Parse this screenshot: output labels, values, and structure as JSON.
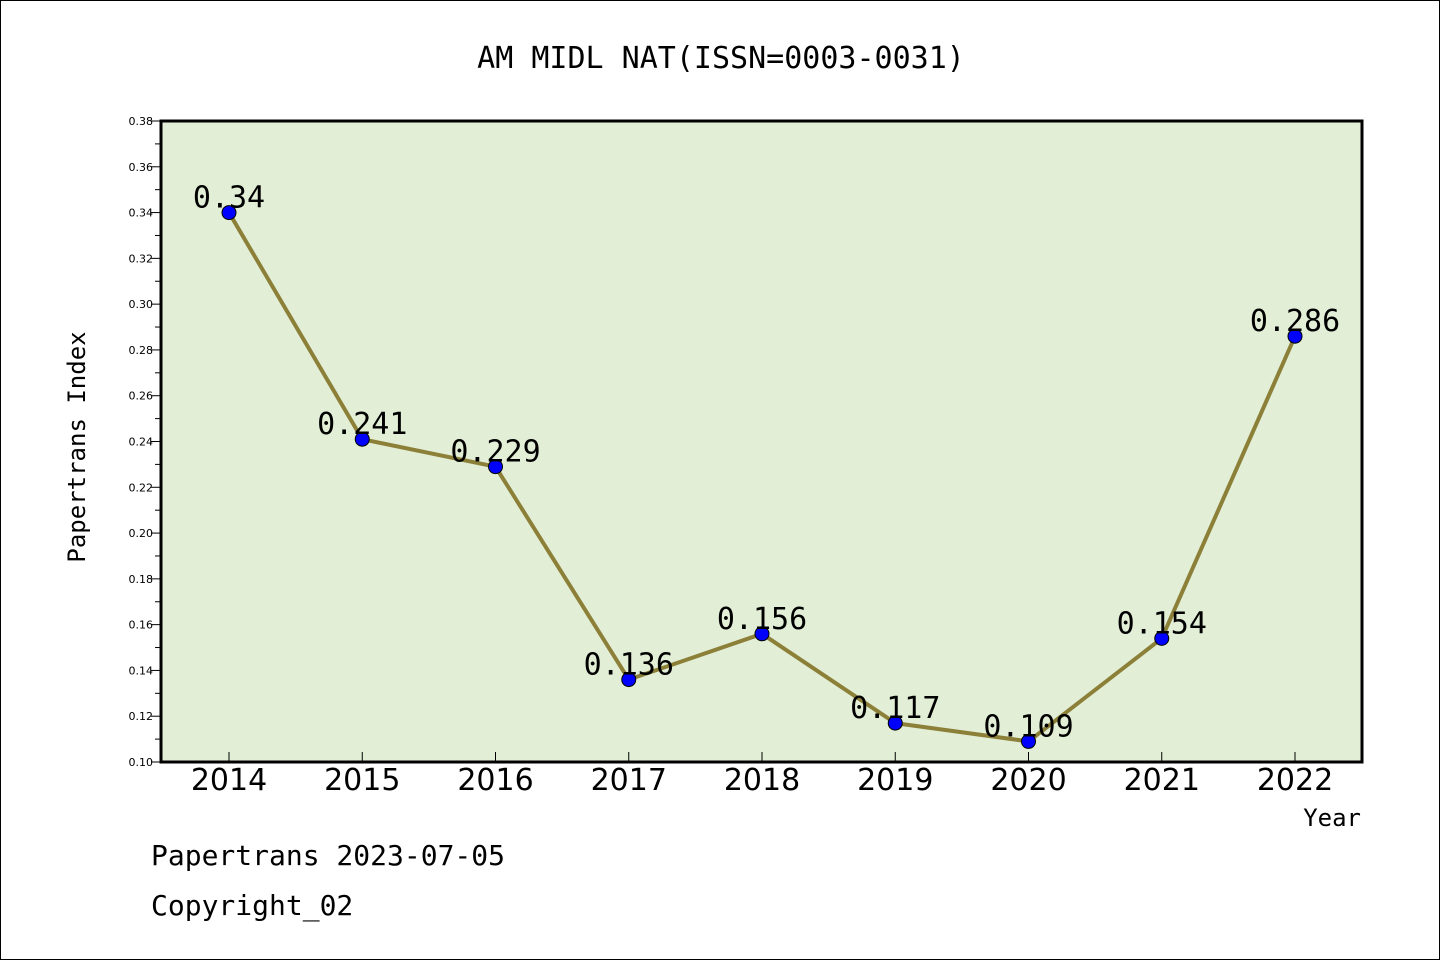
{
  "chart_data": {
    "type": "line",
    "title": "AM MIDL NAT(ISSN=0003-0031)",
    "xlabel": "Year",
    "ylabel": "Papertrans Index",
    "categories": [
      "2014",
      "2015",
      "2016",
      "2017",
      "2018",
      "2019",
      "2020",
      "2021",
      "2022"
    ],
    "series": [
      {
        "values": [
          0.34,
          0.241,
          0.229,
          0.136,
          0.156,
          0.117,
          0.109,
          0.154,
          0.286
        ],
        "labels": [
          "0.34",
          "0.241",
          "0.229",
          "0.136",
          "0.156",
          "0.117",
          "0.109",
          "0.154",
          "0.286"
        ]
      }
    ],
    "ylim": [
      0.1,
      0.38
    ],
    "yticks": [
      "0.10",
      "0.12",
      "0.14",
      "0.16",
      "0.18",
      "0.20",
      "0.22",
      "0.24",
      "0.26",
      "0.28",
      "0.30",
      "0.32",
      "0.34",
      "0.36",
      "0.38"
    ],
    "grid": false,
    "legend": "none",
    "colors": {
      "plot_background": "#e2efd6",
      "line": "#8c8039",
      "marker": "#0000ff"
    }
  },
  "footer": {
    "line1": "Papertrans 2023-07-05",
    "line2": "Copyright_02"
  }
}
